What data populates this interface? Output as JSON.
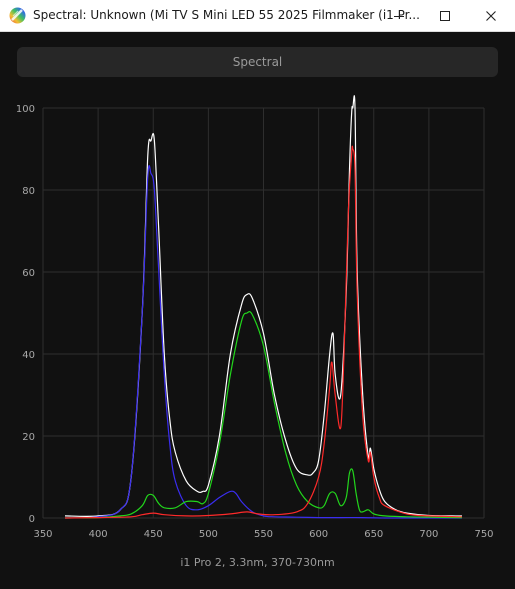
{
  "window": {
    "title": "Spectral: Unknown (Mi TV S Mini LED 55 2025 Filmmaker (i1 Pr...",
    "app_icon": "rainbow-disc-icon",
    "controls": [
      "minimize-icon",
      "maximize-icon",
      "close-icon"
    ]
  },
  "tab": {
    "label": "Spectral"
  },
  "footer": {
    "caption": "i1 Pro 2, 3.3nm, 370-730nm"
  },
  "colors": {
    "background": "#111111",
    "white_trace": "#ffffff",
    "blue_trace": "#3a2df0",
    "green_trace": "#22d61c",
    "red_trace": "#ff2a2a",
    "grid": "#2e2e2e"
  },
  "chart_data": {
    "type": "line",
    "title": "",
    "xlabel": "",
    "ylabel": "",
    "xlim": [
      350,
      750
    ],
    "ylim": [
      0,
      100
    ],
    "x_ticks": [
      350,
      400,
      450,
      500,
      550,
      600,
      650,
      700,
      750
    ],
    "y_ticks": [
      0,
      20,
      40,
      60,
      80,
      100
    ],
    "grid": true,
    "series": [
      {
        "color": "#ffffff",
        "x": [
          370,
          400,
          420,
          430,
          440,
          445,
          448,
          451,
          455,
          460,
          465,
          470,
          480,
          490,
          495,
          500,
          510,
          520,
          530,
          535,
          540,
          550,
          560,
          570,
          580,
          590,
          595,
          600,
          605,
          610,
          613,
          615,
          620,
          625,
          628,
          630,
          631,
          633,
          635,
          640,
          645,
          647,
          650,
          655,
          660,
          670,
          680,
          700,
          720,
          730
        ],
        "y": [
          0.5,
          0.5,
          2,
          10,
          50,
          88,
          92,
          92,
          70,
          40,
          24,
          16,
          9,
          6.5,
          6.5,
          8,
          20,
          40,
          52,
          54.5,
          53.5,
          45,
          30,
          19,
          12,
          10.5,
          11,
          14,
          25,
          40,
          45,
          35,
          30,
          55,
          85,
          99,
          100,
          100,
          60,
          30,
          15,
          17,
          12,
          7,
          4,
          2,
          1.2,
          0.6,
          0.5,
          0.5
        ]
      },
      {
        "color": "#3a2df0",
        "x": [
          370,
          400,
          420,
          430,
          440,
          445,
          448,
          451,
          455,
          460,
          465,
          470,
          480,
          490,
          500,
          510,
          520,
          525,
          530,
          540,
          550,
          560,
          580,
          600,
          620,
          640,
          660,
          700,
          730
        ],
        "y": [
          0,
          0.3,
          2,
          10,
          50,
          83,
          84,
          80,
          60,
          35,
          18,
          9,
          3,
          2,
          3,
          5,
          6.5,
          6,
          4,
          1.5,
          0.5,
          0.3,
          0.2,
          0.1,
          0.1,
          0.1,
          0,
          0,
          0
        ]
      },
      {
        "color": "#22d61c",
        "x": [
          370,
          400,
          420,
          430,
          440,
          445,
          450,
          455,
          460,
          470,
          480,
          490,
          495,
          500,
          510,
          520,
          530,
          535,
          540,
          550,
          560,
          570,
          580,
          590,
          600,
          605,
          610,
          615,
          620,
          625,
          628,
          631,
          634,
          637,
          640,
          645,
          650,
          660,
          680,
          700,
          730
        ],
        "y": [
          0,
          0.1,
          0.5,
          1,
          3,
          5.5,
          5.5,
          3.5,
          2.5,
          2.5,
          4,
          4,
          3.5,
          6,
          18,
          35,
          48,
          50,
          49.5,
          42,
          28,
          16,
          8,
          4,
          2.5,
          3,
          6,
          6,
          3,
          5,
          11,
          11.5,
          6,
          2,
          1.5,
          2,
          1,
          0.5,
          0.3,
          0.2,
          0.1
        ]
      },
      {
        "color": "#ff2a2a",
        "x": [
          370,
          400,
          430,
          440,
          450,
          460,
          480,
          500,
          520,
          535,
          545,
          560,
          580,
          590,
          600,
          605,
          610,
          612,
          615,
          620,
          623,
          627,
          630,
          631,
          633,
          635,
          640,
          645,
          647,
          650,
          655,
          660,
          680,
          700,
          730
        ],
        "y": [
          0,
          0.1,
          0.3,
          0.8,
          1.2,
          0.8,
          0.5,
          0.6,
          1,
          1.5,
          1,
          0.8,
          1.5,
          3.5,
          10,
          18,
          32,
          38,
          30,
          22,
          40,
          75,
          89,
          90,
          85,
          55,
          25,
          14,
          16,
          10,
          5,
          3,
          1,
          0.5,
          0.3
        ]
      }
    ]
  }
}
